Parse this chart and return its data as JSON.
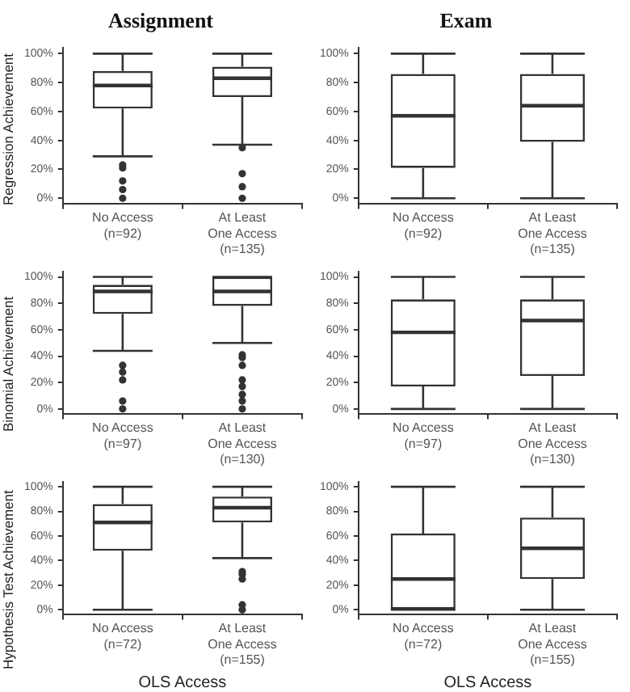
{
  "chart_data": [
    {
      "type": "box",
      "title": "Assignment",
      "ylabel": "Regression Achievement",
      "categories": [
        "No Access\n(n=92)",
        "At Least\nOne Access\n(n=135)"
      ],
      "boxes": [
        {
          "low": 29,
          "q1": 62,
          "median": 78,
          "q3": 88,
          "high": 100,
          "outliers": [
            0,
            6,
            12,
            21,
            23
          ]
        },
        {
          "low": 37,
          "q1": 70,
          "median": 83,
          "q3": 91,
          "high": 100,
          "outliers": [
            0,
            8,
            17,
            35
          ]
        }
      ],
      "ylim": [
        -4,
        104
      ],
      "yticks": [
        {
          "value": 0,
          "label": "0%"
        },
        {
          "value": 20,
          "label": "20%"
        },
        {
          "value": 40,
          "label": "40%"
        },
        {
          "value": 60,
          "label": "60%"
        },
        {
          "value": 80,
          "label": "80%"
        },
        {
          "value": 100,
          "label": "100%"
        }
      ],
      "grid": false
    },
    {
      "type": "box",
      "title": "Exam",
      "categories": [
        "No Access\n(n=92)",
        "At Least\nOne Access\n(n=135)"
      ],
      "boxes": [
        {
          "low": 0,
          "q1": 21,
          "median": 57,
          "q3": 86,
          "high": 100
        },
        {
          "low": 0,
          "q1": 39,
          "median": 64,
          "q3": 86,
          "high": 100
        }
      ],
      "ylim": [
        -4,
        104
      ],
      "yticks": [
        {
          "value": 0,
          "label": "0%"
        },
        {
          "value": 20,
          "label": "20%"
        },
        {
          "value": 40,
          "label": "40%"
        },
        {
          "value": 60,
          "label": "60%"
        },
        {
          "value": 80,
          "label": "80%"
        },
        {
          "value": 100,
          "label": "100%"
        }
      ],
      "grid": false
    },
    {
      "type": "box",
      "ylabel": "Binomial Achievement",
      "categories": [
        "No Access\n(n=97)",
        "At Least\nOne Access\n(n=130)"
      ],
      "boxes": [
        {
          "low": 44,
          "q1": 72,
          "median": 89,
          "q3": 94,
          "high": 100,
          "outliers": [
            0,
            6,
            22,
            28,
            33
          ]
        },
        {
          "low": 50,
          "q1": 78,
          "median": 89,
          "q3": 100,
          "high": 100,
          "outliers": [
            0,
            6,
            11,
            17,
            22,
            33,
            39,
            41
          ]
        }
      ],
      "ylim": [
        -4,
        104
      ],
      "yticks": [
        {
          "value": 0,
          "label": "0%"
        },
        {
          "value": 20,
          "label": "20%"
        },
        {
          "value": 40,
          "label": "40%"
        },
        {
          "value": 60,
          "label": "60%"
        },
        {
          "value": 80,
          "label": "80%"
        },
        {
          "value": 100,
          "label": "100%"
        }
      ],
      "grid": false
    },
    {
      "type": "box",
      "categories": [
        "No Access\n(n=97)",
        "At Least\nOne Access\n(n=130)"
      ],
      "boxes": [
        {
          "low": 0,
          "q1": 17,
          "median": 58,
          "q3": 83,
          "high": 100
        },
        {
          "low": 0,
          "q1": 25,
          "median": 67,
          "q3": 83,
          "high": 100
        }
      ],
      "ylim": [
        -4,
        104
      ],
      "yticks": [
        {
          "value": 0,
          "label": "0%"
        },
        {
          "value": 20,
          "label": "20%"
        },
        {
          "value": 40,
          "label": "40%"
        },
        {
          "value": 60,
          "label": "60%"
        },
        {
          "value": 80,
          "label": "80%"
        },
        {
          "value": 100,
          "label": "100%"
        }
      ],
      "grid": false
    },
    {
      "type": "box",
      "ylabel": "Hypothesis Test Achievement",
      "xlabel": "OLS Access",
      "categories": [
        "No Access\n(n=72)",
        "At Least\nOne Access\n(n=155)"
      ],
      "boxes": [
        {
          "low": 0,
          "q1": 48,
          "median": 71,
          "q3": 86,
          "high": 100
        },
        {
          "low": 42,
          "q1": 71,
          "median": 83,
          "q3": 92,
          "high": 100,
          "outliers": [
            0,
            4,
            25,
            29,
            31
          ]
        }
      ],
      "ylim": [
        -4,
        104
      ],
      "yticks": [
        {
          "value": 0,
          "label": "0%"
        },
        {
          "value": 20,
          "label": "20%"
        },
        {
          "value": 40,
          "label": "40%"
        },
        {
          "value": 60,
          "label": "60%"
        },
        {
          "value": 80,
          "label": "80%"
        },
        {
          "value": 100,
          "label": "100%"
        }
      ],
      "grid": false
    },
    {
      "type": "box",
      "xlabel": "OLS Access",
      "categories": [
        "No Access\n(n=72)",
        "At Least\nOne Access\n(n=155)"
      ],
      "boxes": [
        {
          "low": 0,
          "q1": 0,
          "median": 25,
          "q3": 62,
          "high": 100
        },
        {
          "low": 0,
          "q1": 25,
          "median": 50,
          "q3": 75,
          "high": 100
        }
      ],
      "ylim": [
        -4,
        104
      ],
      "yticks": [
        {
          "value": 0,
          "label": "0%"
        },
        {
          "value": 20,
          "label": "20%"
        },
        {
          "value": 40,
          "label": "40%"
        },
        {
          "value": 60,
          "label": "60%"
        },
        {
          "value": 80,
          "label": "80%"
        },
        {
          "value": 100,
          "label": "100%"
        }
      ],
      "grid": false
    }
  ]
}
